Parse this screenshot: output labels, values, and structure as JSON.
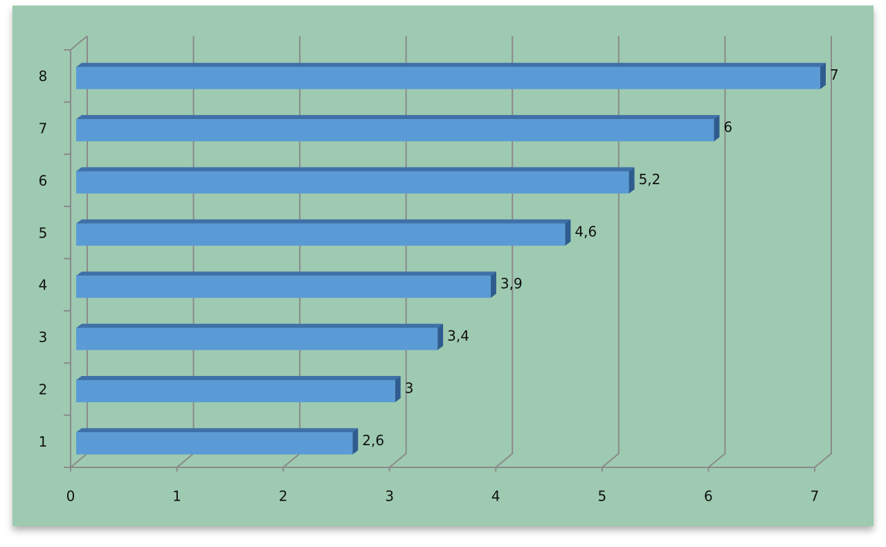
{
  "chart_data": {
    "type": "bar",
    "orientation": "horizontal",
    "categories": [
      "1",
      "2",
      "3",
      "4",
      "5",
      "6",
      "7",
      "8"
    ],
    "values": [
      2.6,
      3,
      3.4,
      3.9,
      4.6,
      5.2,
      6,
      7
    ],
    "value_labels": [
      "2,6",
      "3",
      "3,4",
      "3,9",
      "4,6",
      "5,2",
      "6",
      "7"
    ],
    "color": "#5b9bd5",
    "xlim": [
      0,
      7
    ],
    "xticks": [
      0,
      1,
      2,
      3,
      4,
      5,
      6,
      7
    ],
    "grid": true
  }
}
